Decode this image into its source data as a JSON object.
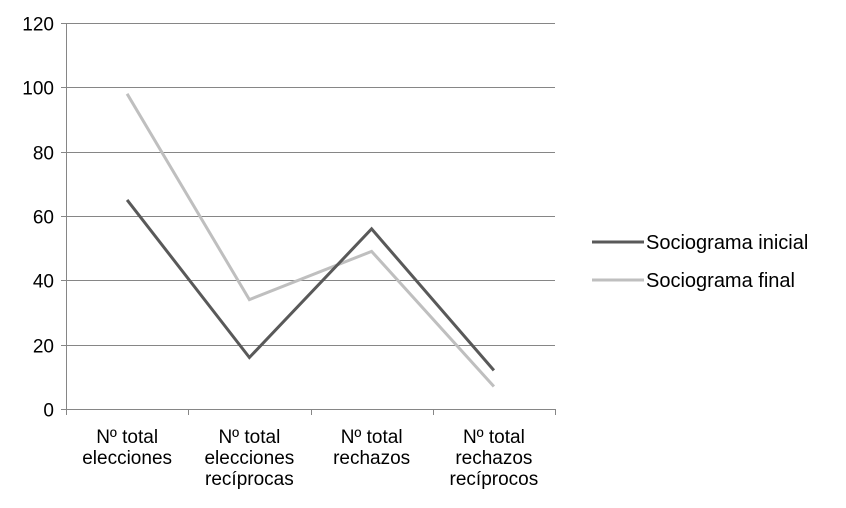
{
  "chart_data": {
    "type": "line",
    "categories": [
      [
        "Nº total",
        "elecciones"
      ],
      [
        "Nº total",
        "elecciones",
        "recíprocas"
      ],
      [
        "Nº total",
        "rechazos"
      ],
      [
        "Nº total",
        "rechazos",
        "recíprocos"
      ]
    ],
    "series": [
      {
        "name": "Sociograma inicial",
        "values": [
          65,
          16,
          56,
          12
        ],
        "color": "#595959"
      },
      {
        "name": "Sociograma final",
        "values": [
          98,
          34,
          49,
          7
        ],
        "color": "#bfbfbf"
      }
    ],
    "ylim": [
      0,
      120
    ],
    "yticks": [
      0,
      20,
      40,
      60,
      80,
      100,
      120
    ],
    "grid": true,
    "legend_position": "right",
    "colors": {
      "gridline": "#868686",
      "axis": "#868686"
    }
  }
}
